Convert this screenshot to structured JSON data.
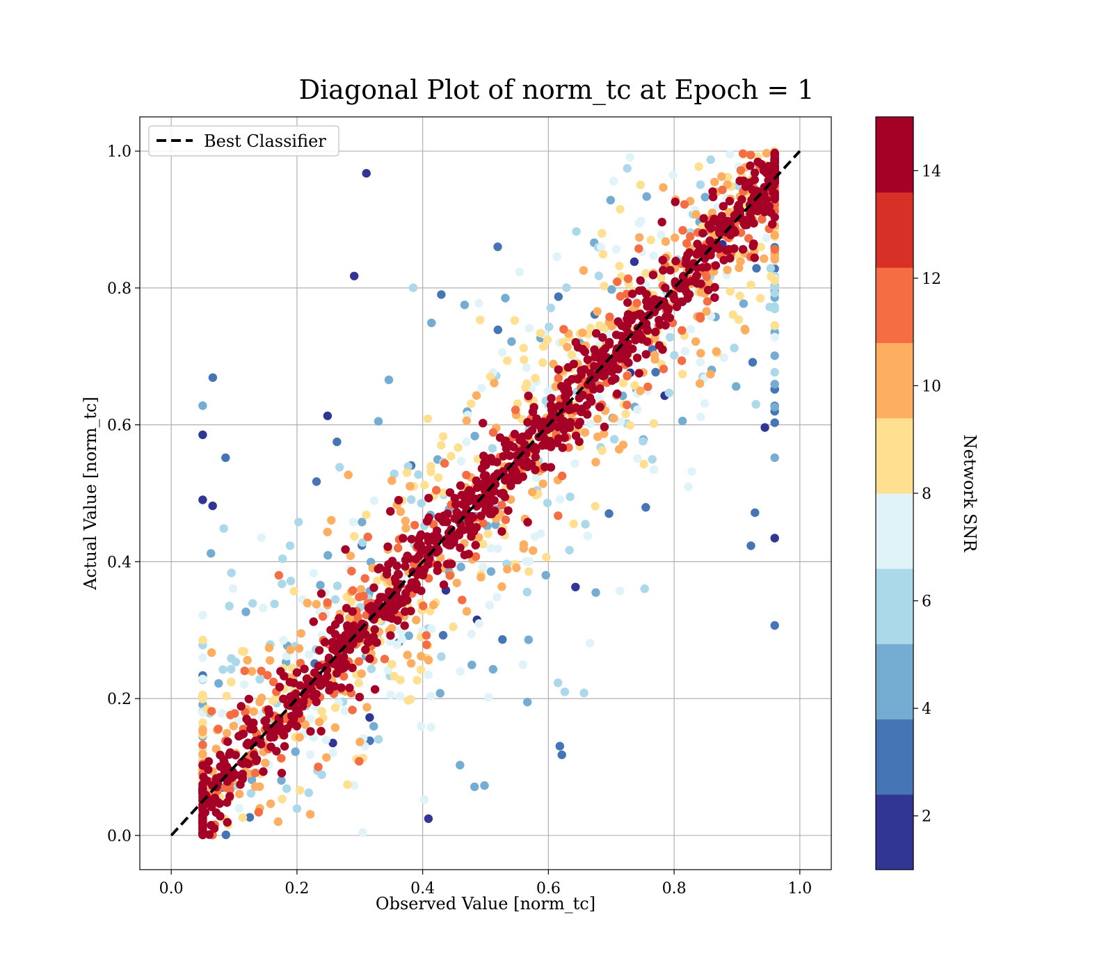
{
  "chart_data": {
    "type": "scatter",
    "title": "Diagonal Plot of norm_tc at Epoch = 1",
    "xlabel": "Observed Value [norm_tc]",
    "ylabel": "Actual Value [norm_tc]",
    "xlim": [
      -0.05,
      1.05
    ],
    "ylim": [
      -0.05,
      1.05
    ],
    "x_ticks": [
      0.0,
      0.2,
      0.4,
      0.6,
      0.8,
      1.0
    ],
    "y_ticks": [
      0.0,
      0.2,
      0.4,
      0.6,
      0.8,
      1.0
    ],
    "x_tick_labels": [
      "0.0",
      "0.2",
      "0.4",
      "0.6",
      "0.8",
      "1.0"
    ],
    "y_tick_labels": [
      "0.0",
      "0.2",
      "0.4",
      "0.6",
      "0.8",
      "1.0"
    ],
    "grid": true,
    "legend": {
      "placement": "upper-left",
      "entries": [
        "Best Classifier"
      ]
    },
    "reference_line": {
      "name": "Best Classifier",
      "x": [
        0.0,
        1.0
      ],
      "y": [
        0.0,
        1.0
      ],
      "style": "dashed",
      "color": "#000000"
    },
    "point_distribution": {
      "description": "dense band along the diagonal; lower-SNR points scatter farther from it",
      "x_range": [
        0.05,
        0.96
      ],
      "y_range": [
        0.0,
        1.0
      ],
      "clip_y": [
        0.0,
        1.0
      ]
    },
    "colorbar": {
      "label": "Network SNR",
      "range": [
        1,
        15
      ],
      "ticks": [
        2,
        4,
        6,
        8,
        10,
        12,
        14
      ],
      "tick_labels": [
        "2",
        "4",
        "6",
        "8",
        "10",
        "12",
        "14"
      ],
      "colors": [
        "#313695",
        "#4575b4",
        "#74add1",
        "#abd9e9",
        "#e0f3f8",
        "#fee090",
        "#fdae61",
        "#f46d43",
        "#d73027",
        "#a50026"
      ]
    }
  }
}
